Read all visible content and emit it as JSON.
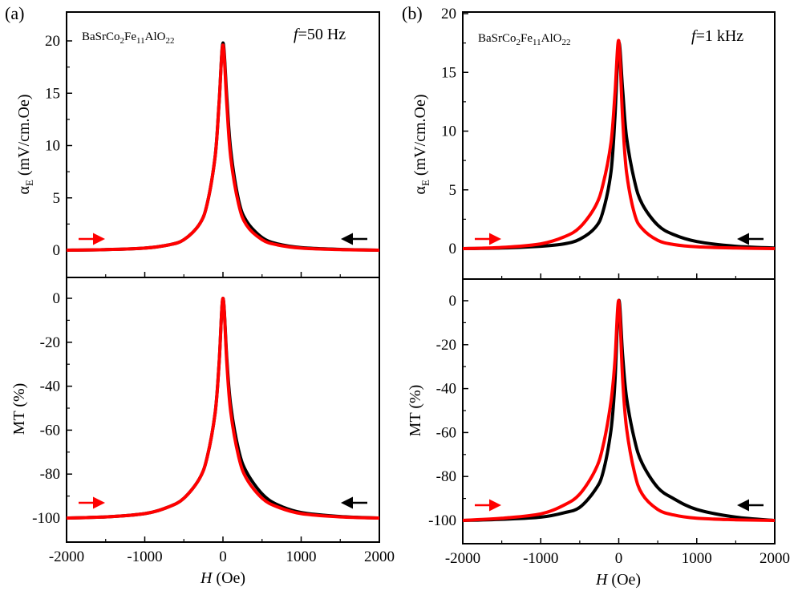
{
  "chart_data": [
    {
      "type": "line",
      "panel_label": "(a)",
      "subplots": [
        {
          "ylabel": "αE (mV/cm.Oe)",
          "ylabel_main": "α",
          "ylabel_sub": "E",
          "ylabel_rest": " (mV/cm.Oe)",
          "ylim": [
            -1,
            21
          ],
          "yticks": [
            0,
            5,
            10,
            15,
            20
          ],
          "ytick_labels": [
            "0",
            "5",
            "10",
            "15",
            "20"
          ],
          "annotation_left": "BaSrCo2Fe11AlO22",
          "annotation_right": "f=50 Hz",
          "series": [
            {
              "name": "",
              "color": "#000000",
              "direction": "sweep down (right to left)",
              "x": [
                -2000,
                -1500,
                -1000,
                -700,
                -500,
                -300,
                -200,
                -100,
                -50,
                0,
                50,
                100,
                200,
                300,
                500,
                700,
                1000,
                1500,
                2000
              ],
              "values": [
                0,
                0.05,
                0.2,
                0.5,
                1.0,
                2.5,
                4.5,
                9.0,
                14.0,
                19.8,
                14.5,
                9.5,
                4.8,
                2.8,
                1.2,
                0.6,
                0.25,
                0.08,
                0.0
              ]
            },
            {
              "name": "",
              "color": "#ff0000",
              "direction": "sweep up (left to right)",
              "x": [
                -2000,
                -1500,
                -1000,
                -700,
                -500,
                -300,
                -200,
                -100,
                -50,
                0,
                50,
                100,
                200,
                300,
                500,
                700,
                1000,
                1500,
                2000
              ],
              "values": [
                0,
                0.05,
                0.2,
                0.5,
                1.0,
                2.5,
                4.5,
                9.0,
                14.0,
                19.6,
                13.8,
                8.8,
                4.4,
                2.4,
                1.0,
                0.5,
                0.2,
                0.05,
                0.0
              ]
            }
          ]
        },
        {
          "ylabel": "MT (%)",
          "ylim": [
            -110,
            5
          ],
          "yticks": [
            0,
            -20,
            -40,
            -60,
            -80,
            -100
          ],
          "ytick_labels": [
            "0",
            "-20",
            "-40",
            "-60",
            "-80",
            "-100"
          ],
          "series": [
            {
              "name": "",
              "color": "#000000",
              "direction": "sweep down",
              "x": [
                -2000,
                -1500,
                -1000,
                -700,
                -500,
                -300,
                -200,
                -100,
                -50,
                0,
                50,
                100,
                200,
                300,
                500,
                700,
                1000,
                1500,
                2000
              ],
              "values": [
                -100,
                -99.5,
                -98,
                -95,
                -91,
                -82,
                -72,
                -52,
                -30,
                0,
                -28,
                -49,
                -69,
                -79,
                -89,
                -94,
                -97.5,
                -99.3,
                -100
              ]
            },
            {
              "name": "",
              "color": "#ff0000",
              "direction": "sweep up",
              "x": [
                -2000,
                -1500,
                -1000,
                -700,
                -500,
                -300,
                -200,
                -100,
                -50,
                0,
                50,
                100,
                200,
                300,
                500,
                700,
                1000,
                1500,
                2000
              ],
              "values": [
                -100,
                -99.5,
                -98,
                -95,
                -91,
                -82,
                -72,
                -52,
                -30,
                0,
                -30,
                -52,
                -72,
                -82,
                -91,
                -95,
                -98,
                -99.5,
                -100
              ]
            }
          ]
        }
      ],
      "xlabel_italic": "H",
      "xlabel_rest": " (Oe)",
      "xlim": [
        -2000,
        2000
      ],
      "xticks": [
        -2000,
        -1000,
        0,
        1000,
        2000
      ],
      "xtick_labels": [
        "-2000",
        "-1000",
        "0",
        "1000",
        "2000"
      ]
    },
    {
      "type": "line",
      "panel_label": "(b)",
      "subplots": [
        {
          "ylabel": "αE (mV/cm.Oe)",
          "ylabel_main": "α",
          "ylabel_sub": "E",
          "ylabel_rest": " (mV/cm.Oe)",
          "ylim": [
            -1,
            20
          ],
          "yticks": [
            0,
            5,
            10,
            15,
            20
          ],
          "ytick_labels": [
            "0",
            "5",
            "10",
            "15",
            "20"
          ],
          "annotation_left": "BaSrCo2Fe11AlO22",
          "annotation_right": "f=1 kHz",
          "series": [
            {
              "name": "",
              "color": "#000000",
              "direction": "sweep down",
              "x": [
                -2000,
                -1500,
                -1000,
                -700,
                -500,
                -300,
                -200,
                -100,
                -50,
                0,
                50,
                100,
                200,
                300,
                500,
                700,
                1000,
                1500,
                2000
              ],
              "values": [
                0,
                0.05,
                0.2,
                0.4,
                0.8,
                1.8,
                3.2,
                6.5,
                11.0,
                17.5,
                13.5,
                9.5,
                5.8,
                3.8,
                2.0,
                1.2,
                0.6,
                0.2,
                0.05
              ]
            },
            {
              "name": "",
              "color": "#ff0000",
              "direction": "sweep up",
              "x": [
                -2000,
                -1500,
                -1000,
                -700,
                -500,
                -300,
                -200,
                -100,
                -50,
                0,
                50,
                100,
                200,
                300,
                500,
                700,
                1000,
                1500,
                2000
              ],
              "values": [
                0,
                0.1,
                0.4,
                1.0,
                1.8,
                3.6,
                5.5,
                9.0,
                13.0,
                17.7,
                11.0,
                6.5,
                3.0,
                1.7,
                0.7,
                0.35,
                0.15,
                0.05,
                0.0
              ]
            }
          ]
        },
        {
          "ylabel": "MT (%)",
          "ylim": [
            -110,
            5
          ],
          "yticks": [
            0,
            -20,
            -40,
            -60,
            -80,
            -100
          ],
          "ytick_labels": [
            "0",
            "-20",
            "-40",
            "-60",
            "-80",
            "-100"
          ],
          "series": [
            {
              "name": "",
              "color": "#000000",
              "direction": "sweep down",
              "x": [
                -2000,
                -1500,
                -1000,
                -700,
                -500,
                -300,
                -200,
                -100,
                -50,
                0,
                50,
                100,
                200,
                300,
                500,
                700,
                1000,
                1500,
                2000
              ],
              "values": [
                -100,
                -99.5,
                -98.5,
                -96.5,
                -94,
                -86,
                -78,
                -59,
                -38,
                0,
                -25,
                -44,
                -63,
                -74,
                -85,
                -90,
                -95,
                -98.5,
                -100
              ]
            },
            {
              "name": "",
              "color": "#ff0000",
              "direction": "sweep up",
              "x": [
                -2000,
                -1500,
                -1000,
                -700,
                -500,
                -300,
                -200,
                -100,
                -50,
                0,
                50,
                100,
                200,
                300,
                500,
                700,
                1000,
                1500,
                2000
              ],
              "values": [
                -100,
                -99,
                -97,
                -93,
                -88,
                -77,
                -66,
                -46,
                -28,
                0,
                -36,
                -58,
                -78,
                -88,
                -95,
                -97.5,
                -99,
                -99.7,
                -100
              ]
            }
          ]
        }
      ],
      "xlabel_italic": "H",
      "xlabel_rest": " (Oe)",
      "xlim": [
        -2000,
        2000
      ],
      "xticks": [
        -2000,
        -1000,
        0,
        1000,
        2000
      ],
      "xtick_labels": [
        "-2000",
        "-1000",
        "0",
        "1000",
        "2000"
      ]
    }
  ],
  "annotations": {
    "compound_main": "BaSrCo",
    "compound_sub1": "2",
    "compound_mid1": "Fe",
    "compound_sub2": "11",
    "compound_mid2": "AlO",
    "compound_sub3": "22",
    "freq_a_italic": "f",
    "freq_a_rest": "=50 Hz",
    "freq_b_italic": "f",
    "freq_b_rest": "=1 kHz"
  },
  "colors": {
    "sweep_up": "#ff0000",
    "sweep_down": "#000000",
    "axes": "#000000"
  }
}
